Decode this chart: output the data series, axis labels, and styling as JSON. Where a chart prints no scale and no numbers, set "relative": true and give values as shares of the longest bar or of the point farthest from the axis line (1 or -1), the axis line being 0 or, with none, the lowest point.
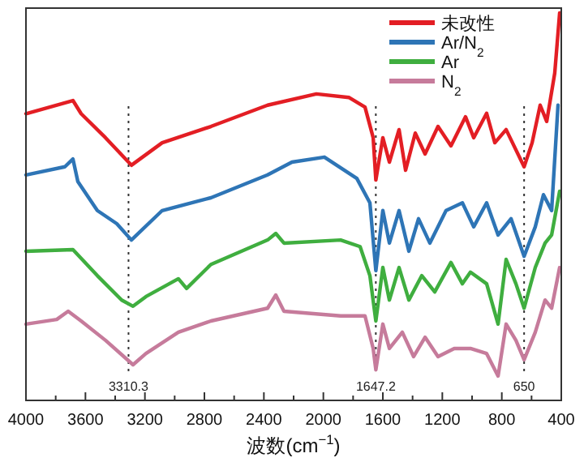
{
  "chart_data": {
    "type": "line",
    "relative": true,
    "xlabel": "波数(cm$^{−1}$)",
    "xlim": [
      4000,
      400
    ],
    "xticks": [
      4000,
      3600,
      3200,
      2800,
      2400,
      2000,
      1600,
      1200,
      800,
      400
    ],
    "legend": "top right",
    "grid": false,
    "marker": "none",
    "line_style": "solid",
    "series": [
      {
        "name": "未改性",
        "color": "#e31e24",
        "x": [
          4000,
          3684,
          3629,
          3465,
          3291,
          3084,
          2756,
          2375,
          2047,
          1829,
          1720,
          1665,
          1647,
          1600,
          1556,
          1491,
          1447,
          1382,
          1316,
          1229,
          1142,
          1044,
          989,
          902,
          847,
          771,
          650,
          596,
          542,
          498,
          444,
          411
        ],
        "values": [
          0.74,
          0.774,
          0.74,
          0.678,
          0.607,
          0.665,
          0.707,
          0.762,
          0.791,
          0.782,
          0.757,
          0.678,
          0.569,
          0.678,
          0.615,
          0.699,
          0.594,
          0.69,
          0.636,
          0.707,
          0.657,
          0.732,
          0.678,
          0.741,
          0.665,
          0.699,
          0.603,
          0.665,
          0.762,
          0.72,
          0.845,
          1.0
        ]
      },
      {
        "name": "Ar/N$_{2}$",
        "color": "#2e75b6",
        "x": [
          4000,
          3738,
          3684,
          3651,
          3520,
          3389,
          3291,
          3084,
          2756,
          2375,
          2211,
          1993,
          1775,
          1687,
          1647,
          1600,
          1556,
          1491,
          1425,
          1360,
          1284,
          1175,
          1065,
          989,
          902,
          825,
          738,
          650,
          575,
          520,
          465,
          422
        ],
        "values": [
          0.582,
          0.603,
          0.623,
          0.565,
          0.49,
          0.456,
          0.414,
          0.49,
          0.523,
          0.582,
          0.615,
          0.628,
          0.573,
          0.51,
          0.335,
          0.49,
          0.406,
          0.49,
          0.385,
          0.469,
          0.406,
          0.49,
          0.51,
          0.448,
          0.51,
          0.427,
          0.469,
          0.372,
          0.448,
          0.531,
          0.49,
          0.762
        ]
      },
      {
        "name": "Ar",
        "color": "#3fae3f",
        "x": [
          4000,
          3684,
          3520,
          3356,
          3280,
          3193,
          2975,
          2920,
          2756,
          2375,
          2320,
          2265,
          1884,
          1753,
          1687,
          1647,
          1600,
          1556,
          1491,
          1425,
          1338,
          1251,
          1142,
          1065,
          1011,
          902,
          825,
          771,
          705,
          650,
          575,
          509,
          465,
          411
        ],
        "values": [
          0.385,
          0.389,
          0.322,
          0.259,
          0.243,
          0.268,
          0.314,
          0.289,
          0.351,
          0.414,
          0.431,
          0.406,
          0.414,
          0.397,
          0.322,
          0.205,
          0.343,
          0.259,
          0.343,
          0.259,
          0.322,
          0.28,
          0.356,
          0.301,
          0.331,
          0.301,
          0.197,
          0.364,
          0.301,
          0.238,
          0.343,
          0.406,
          0.427,
          0.54
        ]
      },
      {
        "name": "N$_{2}$",
        "color": "#c67b9b",
        "x": [
          4000,
          3793,
          3716,
          3629,
          3465,
          3280,
          3193,
          2975,
          2756,
          2375,
          2320,
          2265,
          1884,
          1720,
          1665,
          1647,
          1600,
          1556,
          1469,
          1393,
          1316,
          1229,
          1120,
          1011,
          902,
          825,
          771,
          705,
          650,
          575,
          509,
          465,
          411
        ],
        "values": [
          0.197,
          0.209,
          0.23,
          0.205,
          0.155,
          0.092,
          0.121,
          0.176,
          0.205,
          0.238,
          0.272,
          0.23,
          0.218,
          0.218,
          0.134,
          0.079,
          0.197,
          0.134,
          0.176,
          0.113,
          0.163,
          0.113,
          0.134,
          0.134,
          0.121,
          0.063,
          0.197,
          0.155,
          0.105,
          0.176,
          0.259,
          0.238,
          0.343
        ]
      }
    ],
    "ref_lines": [
      {
        "axis": "x",
        "value": 3310.3,
        "label": "3310.3",
        "line_style": "dotted",
        "color": "#333333"
      },
      {
        "axis": "x",
        "value": 1647.2,
        "label": "1647.2",
        "line_style": "dotted",
        "color": "#333333"
      },
      {
        "axis": "x",
        "value": 650,
        "label": "650",
        "line_style": "dotted",
        "color": "#333333"
      }
    ]
  }
}
